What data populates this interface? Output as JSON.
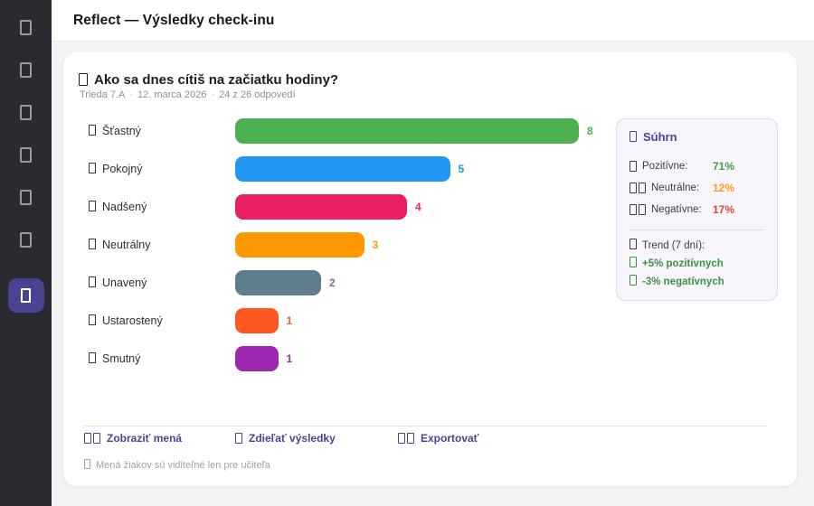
{
  "colors": {
    "accent": "#4a4392",
    "sidebar_background": "#2a2a31",
    "sidebar_icon": "#9a9aa1",
    "page_background": "#f4f4f6",
    "positive": "#43a047",
    "neutral": "#f9a01b",
    "negative": "#e8433f",
    "trend_green": "#3a9440"
  },
  "header": {
    "title": "Reflect — Výsledky check-inu"
  },
  "sidebar": {
    "items": [
      {
        "id": "nav-1",
        "icon": "placeholder-glyph-icon",
        "active": false
      },
      {
        "id": "nav-2",
        "icon": "placeholder-glyph-icon",
        "active": false
      },
      {
        "id": "nav-3",
        "icon": "placeholder-glyph-icon",
        "active": false
      },
      {
        "id": "nav-4",
        "icon": "placeholder-glyph-icon",
        "active": false
      },
      {
        "id": "nav-5",
        "icon": "placeholder-glyph-icon",
        "active": false
      },
      {
        "id": "nav-6",
        "icon": "placeholder-glyph-icon",
        "active": false
      },
      {
        "id": "nav-active",
        "icon": "placeholder-glyph-icon",
        "active": true
      }
    ]
  },
  "card": {
    "question": "Ako sa dnes cítiš na začiatku hodiny?",
    "meta": {
      "class_name": "Trieda 7.A",
      "separator": "·",
      "date": "12. marca 2026",
      "responses": "24 z 26 odpovedí"
    }
  },
  "chart_data": {
    "type": "bar",
    "orientation": "horizontal",
    "title": "Ako sa dnes cítiš na začiatku hodiny?",
    "categories": [
      "Šťastný",
      "Pokojný",
      "Nadšený",
      "Neutrálny",
      "Unavený",
      "Ustarostený",
      "Smutný"
    ],
    "values": [
      8,
      5,
      4,
      3,
      2,
      1,
      1
    ],
    "colors": [
      "#4caf50",
      "#2196f3",
      "#e91e63",
      "#ff9800",
      "#607d8b",
      "#ff5722",
      "#9c27b0"
    ],
    "xlim": [
      0,
      8
    ],
    "grid": false,
    "value_labels": true,
    "legend": false
  },
  "summary": {
    "title": "Súhrn",
    "rows": [
      {
        "label": "Pozitívne:",
        "value": "71%",
        "color": "#43a047",
        "icon_boxes": 1
      },
      {
        "label": "Neutrálne:",
        "value": "12%",
        "color": "#f9a01b",
        "icon_boxes": 2
      },
      {
        "label": "Negatívne:",
        "value": "17%",
        "color": "#e8433f",
        "icon_boxes": 2
      }
    ],
    "trend_title": "Trend (7 dní):",
    "trend_items": [
      {
        "text": "+5% pozitívnych",
        "color": "#3a9440"
      },
      {
        "text": "-3% negatívnych",
        "color": "#3a9440"
      }
    ]
  },
  "footer": {
    "links": [
      {
        "id": "show-names",
        "label": "Zobraziť mená",
        "icon_boxes": 2
      },
      {
        "id": "share-results",
        "label": "Zdieľať výsledky",
        "icon_boxes": 1
      },
      {
        "id": "export",
        "label": "Exportovať",
        "icon_boxes": 2
      }
    ],
    "note": "Mená žiakov sú viditeľné len pre učiteľa"
  }
}
